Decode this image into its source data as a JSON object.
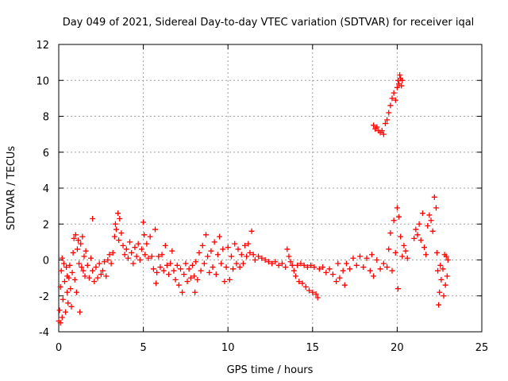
{
  "chart_data": {
    "type": "scatter",
    "title": "Day 049 of 2021, Sidereal Day-to-day VTEC variation (SDTVAR) for receiver iqal",
    "xlabel": "GPS time / hours",
    "ylabel": "SDTVAR / TECUs",
    "xlim": [
      0,
      25
    ],
    "ylim": [
      -4,
      12
    ],
    "xticks": [
      0,
      5,
      10,
      15,
      20,
      25
    ],
    "yticks": [
      -4,
      -2,
      0,
      2,
      4,
      6,
      8,
      10,
      12
    ],
    "grid": true,
    "marker": "+",
    "series": [
      {
        "name": "SDTVAR",
        "color": "#ff0000",
        "points": [
          [
            0.0,
            -3.4
          ],
          [
            0.05,
            -2.8
          ],
          [
            0.1,
            -3.5
          ],
          [
            0.1,
            -1.5
          ],
          [
            0.15,
            -0.6
          ],
          [
            0.2,
            -3.2
          ],
          [
            0.2,
            0.1
          ],
          [
            0.25,
            -2.2
          ],
          [
            0.3,
            -0.2
          ],
          [
            0.35,
            -1.2
          ],
          [
            0.4,
            -2.9
          ],
          [
            0.45,
            -0.4
          ],
          [
            0.5,
            -1.8
          ],
          [
            0.5,
            -0.9
          ],
          [
            0.55,
            -2.4
          ],
          [
            0.6,
            -1.0
          ],
          [
            0.65,
            -0.3
          ],
          [
            0.7,
            -1.6
          ],
          [
            0.75,
            -2.6
          ],
          [
            0.8,
            -0.7
          ],
          [
            0.85,
            0.4
          ],
          [
            0.9,
            1.2
          ],
          [
            0.95,
            -1.1
          ],
          [
            1.0,
            1.4
          ],
          [
            1.05,
            -1.8
          ],
          [
            1.1,
            0.6
          ],
          [
            1.15,
            1.1
          ],
          [
            1.2,
            -0.2
          ],
          [
            1.25,
            -2.9
          ],
          [
            1.3,
            0.9
          ],
          [
            1.35,
            -0.4
          ],
          [
            1.4,
            1.3
          ],
          [
            1.45,
            -0.6
          ],
          [
            1.5,
            0.2
          ],
          [
            1.55,
            -0.9
          ],
          [
            1.6,
            0.5
          ],
          [
            1.7,
            -0.3
          ],
          [
            1.8,
            -1.0
          ],
          [
            1.9,
            0.1
          ],
          [
            2.0,
            2.3
          ],
          [
            2.0,
            -0.6
          ],
          [
            2.1,
            -1.2
          ],
          [
            2.2,
            -0.4
          ],
          [
            2.3,
            -1.0
          ],
          [
            2.4,
            -0.2
          ],
          [
            2.5,
            -0.8
          ],
          [
            2.6,
            -0.6
          ],
          [
            2.7,
            -0.1
          ],
          [
            2.8,
            -0.9
          ],
          [
            2.9,
            0.0
          ],
          [
            3.0,
            0.3
          ],
          [
            3.1,
            -0.2
          ],
          [
            3.2,
            0.4
          ],
          [
            3.3,
            1.3
          ],
          [
            3.35,
            2.0
          ],
          [
            3.4,
            1.7
          ],
          [
            3.5,
            2.6
          ],
          [
            3.55,
            1.1
          ],
          [
            3.6,
            2.3
          ],
          [
            3.7,
            1.5
          ],
          [
            3.8,
            0.8
          ],
          [
            3.9,
            0.3
          ],
          [
            4.0,
            0.6
          ],
          [
            4.1,
            0.1
          ],
          [
            4.2,
            1.0
          ],
          [
            4.3,
            0.4
          ],
          [
            4.4,
            -0.2
          ],
          [
            4.5,
            0.7
          ],
          [
            4.6,
            0.2
          ],
          [
            4.7,
            0.9
          ],
          [
            4.8,
            0.0
          ],
          [
            4.9,
            0.6
          ],
          [
            5.0,
            2.1
          ],
          [
            5.05,
            1.4
          ],
          [
            5.1,
            0.3
          ],
          [
            5.2,
            0.9
          ],
          [
            5.3,
            0.1
          ],
          [
            5.4,
            1.3
          ],
          [
            5.5,
            0.2
          ],
          [
            5.6,
            -0.5
          ],
          [
            5.7,
            1.7
          ],
          [
            5.75,
            -1.3
          ],
          [
            5.8,
            -0.7
          ],
          [
            5.9,
            0.2
          ],
          [
            6.0,
            -0.4
          ],
          [
            6.1,
            0.3
          ],
          [
            6.2,
            -0.6
          ],
          [
            6.3,
            0.8
          ],
          [
            6.4,
            -0.3
          ],
          [
            6.5,
            -0.8
          ],
          [
            6.6,
            -0.2
          ],
          [
            6.7,
            0.5
          ],
          [
            6.8,
            -0.6
          ],
          [
            6.9,
            -1.1
          ],
          [
            7.0,
            -0.3
          ],
          [
            7.1,
            -1.4
          ],
          [
            7.2,
            -0.5
          ],
          [
            7.3,
            -1.8
          ],
          [
            7.4,
            -0.8
          ],
          [
            7.5,
            -0.2
          ],
          [
            7.6,
            -1.2
          ],
          [
            7.7,
            -0.5
          ],
          [
            7.8,
            -1.0
          ],
          [
            7.9,
            -0.3
          ],
          [
            8.0,
            -0.9
          ],
          [
            8.05,
            -1.8
          ],
          [
            8.1,
            -0.1
          ],
          [
            8.2,
            -1.1
          ],
          [
            8.3,
            0.4
          ],
          [
            8.4,
            -0.6
          ],
          [
            8.5,
            0.8
          ],
          [
            8.6,
            -0.2
          ],
          [
            8.7,
            1.4
          ],
          [
            8.8,
            0.2
          ],
          [
            8.9,
            -0.7
          ],
          [
            9.0,
            0.5
          ],
          [
            9.1,
            -0.4
          ],
          [
            9.2,
            1.0
          ],
          [
            9.3,
            -0.8
          ],
          [
            9.4,
            0.3
          ],
          [
            9.5,
            1.3
          ],
          [
            9.6,
            -0.2
          ],
          [
            9.7,
            0.6
          ],
          [
            9.8,
            -1.2
          ],
          [
            9.9,
            -0.4
          ],
          [
            10.0,
            0.7
          ],
          [
            10.1,
            -1.1
          ],
          [
            10.2,
            0.2
          ],
          [
            10.3,
            -0.5
          ],
          [
            10.4,
            0.9
          ],
          [
            10.5,
            -0.2
          ],
          [
            10.6,
            0.6
          ],
          [
            10.7,
            -0.4
          ],
          [
            10.8,
            0.3
          ],
          [
            10.9,
            -0.2
          ],
          [
            11.0,
            0.8
          ],
          [
            11.1,
            0.2
          ],
          [
            11.2,
            0.9
          ],
          [
            11.3,
            0.4
          ],
          [
            11.4,
            1.6
          ],
          [
            11.5,
            0.3
          ],
          [
            11.6,
            0.0
          ],
          [
            11.8,
            0.2
          ],
          [
            12.0,
            0.1
          ],
          [
            12.2,
            0.0
          ],
          [
            12.4,
            -0.1
          ],
          [
            12.6,
            -0.2
          ],
          [
            12.8,
            -0.1
          ],
          [
            13.0,
            -0.3
          ],
          [
            13.2,
            -0.2
          ],
          [
            13.4,
            -0.4
          ],
          [
            13.5,
            0.6
          ],
          [
            13.6,
            0.2
          ],
          [
            13.7,
            -0.1
          ],
          [
            13.8,
            -0.3
          ],
          [
            13.9,
            -0.6
          ],
          [
            14.0,
            -0.9
          ],
          [
            14.1,
            -0.3
          ],
          [
            14.2,
            -1.2
          ],
          [
            14.3,
            -0.2
          ],
          [
            14.4,
            -1.3
          ],
          [
            14.5,
            -0.3
          ],
          [
            14.6,
            -1.5
          ],
          [
            14.7,
            -0.4
          ],
          [
            14.8,
            -1.7
          ],
          [
            14.9,
            -0.3
          ],
          [
            15.0,
            -1.8
          ],
          [
            15.1,
            -0.4
          ],
          [
            15.2,
            -1.9
          ],
          [
            15.3,
            -2.1
          ],
          [
            15.4,
            -0.5
          ],
          [
            15.6,
            -0.4
          ],
          [
            15.8,
            -0.7
          ],
          [
            16.0,
            -0.5
          ],
          [
            16.2,
            -0.8
          ],
          [
            16.4,
            -1.2
          ],
          [
            16.5,
            -0.2
          ],
          [
            16.6,
            -1.0
          ],
          [
            16.8,
            -0.6
          ],
          [
            16.9,
            -1.4
          ],
          [
            17.0,
            -0.2
          ],
          [
            17.2,
            -0.5
          ],
          [
            17.4,
            0.1
          ],
          [
            17.6,
            -0.3
          ],
          [
            17.8,
            0.2
          ],
          [
            18.0,
            -0.4
          ],
          [
            18.2,
            0.1
          ],
          [
            18.4,
            -0.6
          ],
          [
            18.5,
            0.3
          ],
          [
            18.6,
            -0.9
          ],
          [
            18.8,
            0.0
          ],
          [
            19.0,
            -0.5
          ],
          [
            19.2,
            -0.2
          ],
          [
            19.4,
            -0.4
          ],
          [
            19.5,
            0.6
          ],
          [
            19.6,
            1.5
          ],
          [
            19.7,
            -0.6
          ],
          [
            19.8,
            2.2
          ],
          [
            19.9,
            0.4
          ],
          [
            20.0,
            2.9
          ],
          [
            20.05,
            -1.6
          ],
          [
            20.1,
            2.4
          ],
          [
            20.2,
            1.3
          ],
          [
            20.3,
            0.2
          ],
          [
            20.4,
            0.8
          ],
          [
            20.5,
            0.5
          ],
          [
            20.6,
            0.1
          ],
          [
            21.0,
            1.2
          ],
          [
            21.1,
            1.7
          ],
          [
            21.2,
            1.4
          ],
          [
            21.3,
            2.0
          ],
          [
            21.4,
            1.1
          ],
          [
            21.5,
            2.6
          ],
          [
            21.6,
            0.7
          ],
          [
            21.7,
            0.3
          ],
          [
            21.8,
            1.9
          ],
          [
            21.9,
            2.5
          ],
          [
            22.0,
            2.2
          ],
          [
            22.1,
            1.6
          ],
          [
            22.2,
            3.5
          ],
          [
            22.3,
            2.9
          ],
          [
            22.35,
            0.4
          ],
          [
            22.4,
            -0.6
          ],
          [
            22.45,
            -2.5
          ],
          [
            22.5,
            -1.8
          ],
          [
            22.55,
            -0.3
          ],
          [
            22.6,
            -1.1
          ],
          [
            22.7,
            -0.5
          ],
          [
            22.75,
            -2.0
          ],
          [
            22.8,
            0.3
          ],
          [
            22.85,
            -1.4
          ],
          [
            22.9,
            0.2
          ],
          [
            22.95,
            -0.9
          ],
          [
            23.0,
            0.0
          ],
          [
            18.6,
            7.5
          ],
          [
            18.7,
            7.3
          ],
          [
            18.8,
            7.4
          ],
          [
            18.9,
            7.2
          ],
          [
            19.0,
            7.1
          ],
          [
            19.1,
            7.2
          ],
          [
            19.2,
            7.0
          ],
          [
            19.3,
            7.6
          ],
          [
            19.4,
            7.8
          ],
          [
            19.5,
            8.2
          ],
          [
            19.6,
            8.6
          ],
          [
            19.7,
            9.0
          ],
          [
            19.8,
            9.3
          ],
          [
            19.9,
            8.9
          ],
          [
            20.0,
            9.6
          ],
          [
            20.05,
            10.0
          ],
          [
            20.1,
            9.8
          ],
          [
            20.15,
            10.3
          ],
          [
            20.2,
            10.1
          ],
          [
            20.25,
            9.7
          ],
          [
            20.3,
            10.0
          ]
        ]
      }
    ]
  }
}
